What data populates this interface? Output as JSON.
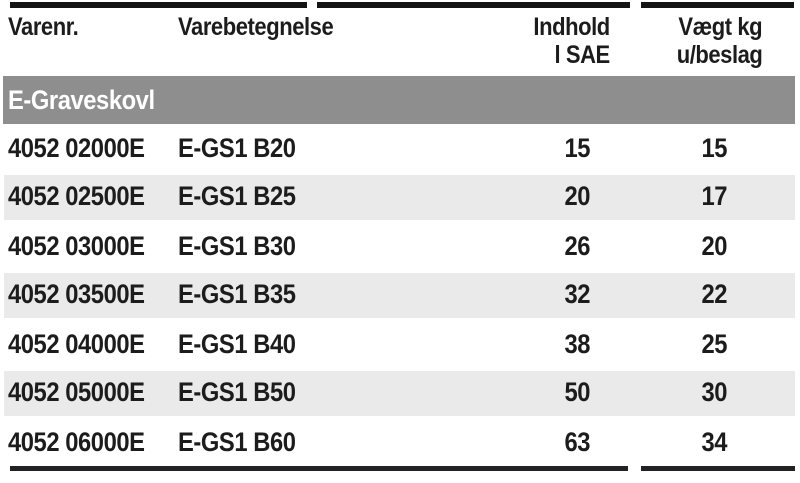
{
  "table": {
    "headers": [
      {
        "id": "varenr",
        "lines": [
          "Varenr."
        ]
      },
      {
        "id": "varebetegnelse",
        "lines": [
          "Varebetegnelse"
        ]
      },
      {
        "id": "indhold",
        "lines": [
          "Indhold",
          "l SAE"
        ]
      },
      {
        "id": "vaegt",
        "lines": [
          "Vægt kg",
          "u/beslag"
        ]
      }
    ],
    "section": "E-Graveskovl",
    "rows": [
      {
        "varenr": "4052 02000E",
        "betegnelse": "E-GS1 B20",
        "indhold": "15",
        "vaegt": "15"
      },
      {
        "varenr": "4052 02500E",
        "betegnelse": "E-GS1 B25",
        "indhold": "20",
        "vaegt": "17"
      },
      {
        "varenr": "4052 03000E",
        "betegnelse": "E-GS1 B30",
        "indhold": "26",
        "vaegt": "20"
      },
      {
        "varenr": "4052 03500E",
        "betegnelse": "E-GS1 B35",
        "indhold": "32",
        "vaegt": "22"
      },
      {
        "varenr": "4052 04000E",
        "betegnelse": "E-GS1 B40",
        "indhold": "38",
        "vaegt": "25"
      },
      {
        "varenr": "4052 05000E",
        "betegnelse": "E-GS1 B50",
        "indhold": "50",
        "vaegt": "30"
      },
      {
        "varenr": "4052 06000E",
        "betegnelse": "E-GS1 B60",
        "indhold": "63",
        "vaegt": "34"
      }
    ]
  },
  "colors": {
    "section_bar": "#8e8e8e",
    "row_stripe": "#eaeaea",
    "text": "#1c1c1c",
    "rule": "#141414",
    "background": "#ffffff"
  }
}
